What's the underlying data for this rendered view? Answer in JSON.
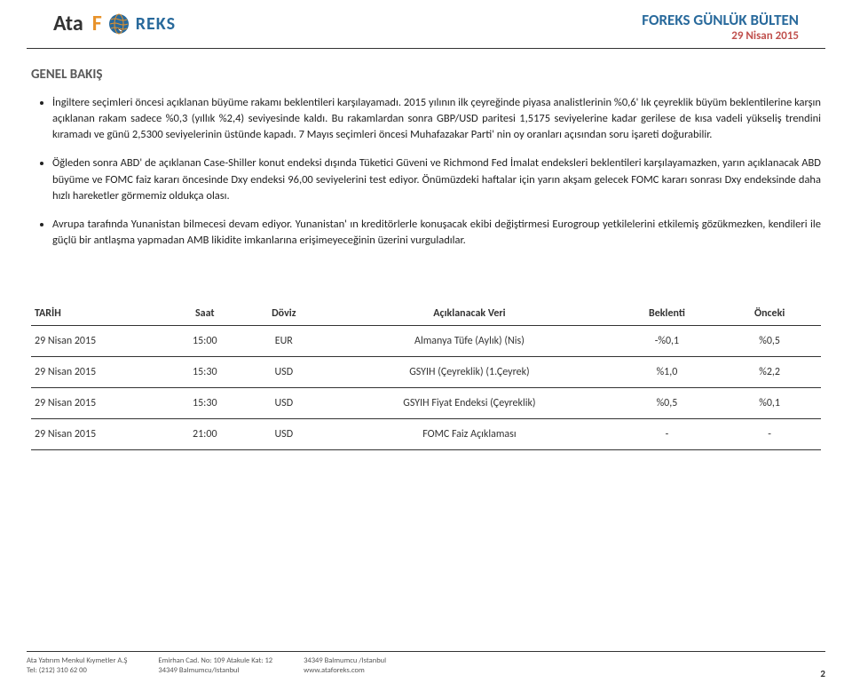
{
  "header": {
    "logo_ata": "Ata",
    "logo_f": "F",
    "logo_reks": "REKS",
    "title": "FOREKS GÜNLÜK BÜLTEN",
    "date": "29 Nisan 2015"
  },
  "section_title": "GENEL BAKIŞ",
  "bullets": [
    "İngiltere seçimleri öncesi açıklanan büyüme rakamı beklentileri karşılayamadı. 2015 yılının ilk çeyreğinde piyasa analistlerinin %0,6' lık çeyreklik büyüm beklentilerine karşın açıklanan rakam sadece %0,3 (yıllık %2,4) seviyesinde kaldı. Bu rakamlardan sonra GBP/USD paritesi 1,5175 seviyelerine kadar gerilese de kısa vadeli yükseliş trendini kıramadı ve günü 2,5300 seviyelerinin üstünde kapadı. 7 Mayıs seçimleri öncesi Muhafazakar Parti' nin oy oranları açısından soru işareti doğurabilir.",
    "Öğleden sonra ABD' de açıklanan Case-Shiller konut endeksi dışında Tüketici Güveni ve Richmond Fed İmalat endeksleri beklentileri karşılayamazken, yarın açıklanacak ABD büyüme ve FOMC faiz kararı öncesinde Dxy endeksi 96,00 seviyelerini test ediyor. Önümüzdeki haftalar için yarın akşam gelecek FOMC kararı sonrası Dxy endeksinde daha hızlı hareketler görmemiz oldukça olası.",
    "Avrupa tarafında Yunanistan bilmecesi devam ediyor. Yunanistan' ın kreditörlerle konuşacak ekibi değiştirmesi Eurogroup yetkilelerini etkilemiş gözükmezken, kendileri ile güçlü bir antlaşma yapmadan AMB likidite imkanlarına erişimeyeceğinin üzerini vurguladılar."
  ],
  "table": {
    "columns": [
      "TARİH",
      "Saat",
      "Döviz",
      "Açıklanacak Veri",
      "Beklenti",
      "Önceki"
    ],
    "rows": [
      [
        "29 Nisan 2015",
        "15:00",
        "EUR",
        "Almanya Tüfe (Aylık) (Nis)",
        "-%0,1",
        "%0,5"
      ],
      [
        "29 Nisan 2015",
        "15:30",
        "USD",
        "GSYIH (Çeyreklik) (1.Çeyrek)",
        "%1,0",
        "%2,2"
      ],
      [
        "29 Nisan 2015",
        "15:30",
        "USD",
        "GSYIH Fiyat Endeksi (Çeyreklik)",
        "%0,5",
        "%0,1"
      ],
      [
        "29 Nisan 2015",
        "21:00",
        "USD",
        "FOMC Faiz Açıklaması",
        "-",
        "-"
      ]
    ]
  },
  "footer": {
    "col1_line1": "Ata Yatırım Menkul Kıymetler A.Ş",
    "col1_line2": "Tel: (212) 310 62 00",
    "col2_line1": "Emirhan Cad. No: 109 Atakule Kat: 12",
    "col2_line2": "34349 Balmumcu/Istanbul",
    "col3_line1": "34349 Balmumcu /Istanbul",
    "col3_line2": "www.ataforeks.com",
    "page": "2"
  },
  "colors": {
    "title_blue": "#296a9c",
    "date_red": "#c0504d",
    "orange": "#e8922a",
    "gray": "#595959"
  }
}
